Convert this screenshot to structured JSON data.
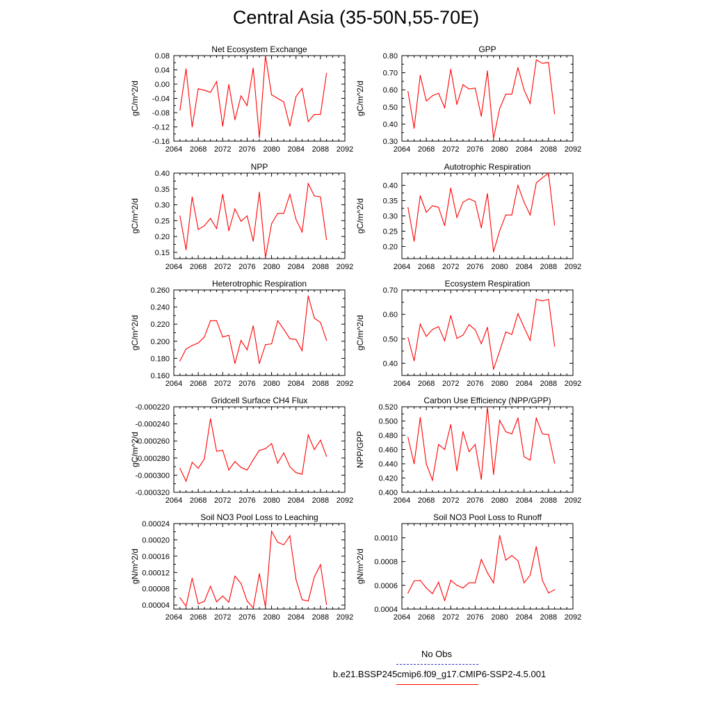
{
  "page": {
    "title": "Central Asia (35-50N,55-70E)"
  },
  "legend": {
    "obs_label": "No Obs",
    "model_label": "b.e21.BSSP245cmip6.f09_g17.CMIP6-SSP2-4.5.001",
    "obs_color": "#3333cc",
    "model_color": "#ff0000"
  },
  "chart_data": [
    {
      "type": "line",
      "title": "Net Ecosystem Exchange",
      "ylabel": "gC/m^2/d",
      "xlim": [
        2064,
        2092
      ],
      "ylim": [
        -0.16,
        0.08
      ],
      "x_ticks": [
        2064,
        2068,
        2072,
        2076,
        2080,
        2084,
        2088,
        2092
      ],
      "y_ticks": [
        -0.16,
        -0.12,
        -0.08,
        -0.04,
        0.0,
        0.04,
        0.08
      ],
      "y_tick_labels": [
        "-0.16",
        "-0.12",
        "-0.08",
        "-0.04",
        "0.00",
        "0.04",
        "0.08"
      ],
      "series": [
        {
          "x": [
            2065,
            2066,
            2067,
            2068,
            2069,
            2070,
            2071,
            2072,
            2073,
            2074,
            2075,
            2076,
            2077,
            2078,
            2079,
            2080,
            2081,
            2082,
            2083,
            2084,
            2085,
            2086,
            2087,
            2088,
            2089
          ],
          "values": [
            -0.073,
            0.043,
            -0.12,
            -0.013,
            -0.017,
            -0.023,
            0.007,
            -0.118,
            -0.001,
            -0.1,
            -0.033,
            -0.06,
            0.045,
            -0.15,
            0.08,
            -0.03,
            -0.04,
            -0.05,
            -0.118,
            -0.035,
            -0.012,
            -0.105,
            -0.085,
            -0.085,
            0.03
          ]
        }
      ]
    },
    {
      "type": "line",
      "title": "GPP",
      "ylabel": "gC/m^2/d",
      "xlim": [
        2064,
        2092
      ],
      "ylim": [
        0.3,
        0.8
      ],
      "x_ticks": [
        2064,
        2068,
        2072,
        2076,
        2080,
        2084,
        2088,
        2092
      ],
      "y_ticks": [
        0.3,
        0.4,
        0.5,
        0.6,
        0.7,
        0.8
      ],
      "y_tick_labels": [
        "0.30",
        "0.40",
        "0.50",
        "0.60",
        "0.70",
        "0.80"
      ],
      "series": [
        {
          "x": [
            2065,
            2066,
            2067,
            2068,
            2069,
            2070,
            2071,
            2072,
            2073,
            2074,
            2075,
            2076,
            2077,
            2078,
            2079,
            2080,
            2081,
            2082,
            2083,
            2084,
            2085,
            2086,
            2087,
            2088,
            2089
          ],
          "values": [
            0.59,
            0.375,
            0.685,
            0.535,
            0.565,
            0.58,
            0.495,
            0.72,
            0.515,
            0.63,
            0.605,
            0.61,
            0.445,
            0.71,
            0.315,
            0.49,
            0.575,
            0.575,
            0.73,
            0.6,
            0.52,
            0.775,
            0.755,
            0.76,
            0.46
          ]
        }
      ]
    },
    {
      "type": "line",
      "title": "NPP",
      "ylabel": "gC/m^2/d",
      "xlim": [
        2064,
        2092
      ],
      "ylim": [
        0.13,
        0.4
      ],
      "x_ticks": [
        2064,
        2068,
        2072,
        2076,
        2080,
        2084,
        2088,
        2092
      ],
      "y_ticks": [
        0.15,
        0.2,
        0.25,
        0.3,
        0.35,
        0.4
      ],
      "y_tick_labels": [
        "0.15",
        "0.20",
        "0.25",
        "0.30",
        "0.35",
        "0.40"
      ],
      "series": [
        {
          "x": [
            2065,
            2066,
            2067,
            2068,
            2069,
            2070,
            2071,
            2072,
            2073,
            2074,
            2075,
            2076,
            2077,
            2078,
            2079,
            2080,
            2081,
            2082,
            2083,
            2084,
            2085,
            2086,
            2087,
            2088,
            2089
          ],
          "values": [
            0.265,
            0.158,
            0.325,
            0.222,
            0.234,
            0.257,
            0.225,
            0.333,
            0.218,
            0.287,
            0.248,
            0.265,
            0.185,
            0.34,
            0.133,
            0.24,
            0.273,
            0.273,
            0.333,
            0.254,
            0.214,
            0.367,
            0.328,
            0.325,
            0.19
          ]
        }
      ]
    },
    {
      "type": "line",
      "title": "Autotrophic Respiration",
      "ylabel": "gC/m^2/d",
      "xlim": [
        2064,
        2092
      ],
      "ylim": [
        0.16,
        0.44
      ],
      "x_ticks": [
        2064,
        2068,
        2072,
        2076,
        2080,
        2084,
        2088,
        2092
      ],
      "y_ticks": [
        0.2,
        0.25,
        0.3,
        0.35,
        0.4
      ],
      "y_tick_labels": [
        "0.20",
        "0.25",
        "0.30",
        "0.35",
        "0.40"
      ],
      "series": [
        {
          "x": [
            2065,
            2066,
            2067,
            2068,
            2069,
            2070,
            2071,
            2072,
            2073,
            2074,
            2075,
            2076,
            2077,
            2078,
            2079,
            2080,
            2081,
            2082,
            2083,
            2084,
            2085,
            2086,
            2087,
            2088,
            2089
          ],
          "values": [
            0.327,
            0.217,
            0.366,
            0.312,
            0.333,
            0.328,
            0.268,
            0.391,
            0.295,
            0.345,
            0.356,
            0.347,
            0.261,
            0.373,
            0.182,
            0.251,
            0.303,
            0.303,
            0.4,
            0.345,
            0.303,
            0.408,
            0.425,
            0.44,
            0.27
          ]
        }
      ]
    },
    {
      "type": "line",
      "title": "Heterotrophic Respiration",
      "ylabel": "gC/m^2/d",
      "xlim": [
        2064,
        2092
      ],
      "ylim": [
        0.16,
        0.26
      ],
      "x_ticks": [
        2064,
        2068,
        2072,
        2076,
        2080,
        2084,
        2088,
        2092
      ],
      "y_ticks": [
        0.16,
        0.18,
        0.2,
        0.22,
        0.24,
        0.26
      ],
      "y_tick_labels": [
        "0.160",
        "0.180",
        "0.200",
        "0.220",
        "0.240",
        "0.260"
      ],
      "series": [
        {
          "x": [
            2065,
            2066,
            2067,
            2068,
            2069,
            2070,
            2071,
            2072,
            2073,
            2074,
            2075,
            2076,
            2077,
            2078,
            2079,
            2080,
            2081,
            2082,
            2083,
            2084,
            2085,
            2086,
            2087,
            2088,
            2089
          ],
          "values": [
            0.177,
            0.191,
            0.195,
            0.198,
            0.205,
            0.224,
            0.224,
            0.205,
            0.207,
            0.174,
            0.201,
            0.19,
            0.218,
            0.174,
            0.196,
            0.197,
            0.224,
            0.214,
            0.203,
            0.202,
            0.189,
            0.253,
            0.227,
            0.222,
            0.201
          ]
        }
      ]
    },
    {
      "type": "line",
      "title": "Ecosystem Respiration",
      "ylabel": "gC/m^2/d",
      "xlim": [
        2064,
        2092
      ],
      "ylim": [
        0.35,
        0.7
      ],
      "x_ticks": [
        2064,
        2068,
        2072,
        2076,
        2080,
        2084,
        2088,
        2092
      ],
      "y_ticks": [
        0.4,
        0.5,
        0.6,
        0.7
      ],
      "y_tick_labels": [
        "0.40",
        "0.50",
        "0.60",
        "0.70"
      ],
      "series": [
        {
          "x": [
            2065,
            2066,
            2067,
            2068,
            2069,
            2070,
            2071,
            2072,
            2073,
            2074,
            2075,
            2076,
            2077,
            2078,
            2079,
            2080,
            2081,
            2082,
            2083,
            2084,
            2085,
            2086,
            2087,
            2088,
            2089
          ],
          "values": [
            0.505,
            0.41,
            0.56,
            0.51,
            0.538,
            0.55,
            0.492,
            0.595,
            0.502,
            0.515,
            0.558,
            0.537,
            0.48,
            0.547,
            0.375,
            0.45,
            0.528,
            0.518,
            0.603,
            0.547,
            0.493,
            0.662,
            0.655,
            0.662,
            0.47
          ]
        }
      ]
    },
    {
      "type": "line",
      "title": "Gridcell Surface CH4 Flux",
      "ylabel": "gC/m^2/d",
      "xlim": [
        2064,
        2092
      ],
      "ylim": [
        -0.00032,
        -0.00022
      ],
      "x_ticks": [
        2064,
        2068,
        2072,
        2076,
        2080,
        2084,
        2088,
        2092
      ],
      "y_ticks": [
        -0.00032,
        -0.0003,
        -0.00028,
        -0.00026,
        -0.00024,
        -0.00022
      ],
      "y_tick_labels": [
        "-0.000320",
        "-0.000300",
        "-0.000280",
        "-0.000260",
        "-0.000240",
        "-0.000220"
      ],
      "series": [
        {
          "x": [
            2065,
            2066,
            2067,
            2068,
            2069,
            2070,
            2071,
            2072,
            2073,
            2074,
            2075,
            2076,
            2077,
            2078,
            2079,
            2080,
            2081,
            2082,
            2083,
            2084,
            2085,
            2086,
            2087,
            2088,
            2089
          ],
          "values": [
            -0.000292,
            -0.000307,
            -0.000285,
            -0.000292,
            -0.000281,
            -0.000234,
            -0.000272,
            -0.000271,
            -0.000294,
            -0.000284,
            -0.000291,
            -0.000294,
            -0.000282,
            -0.000271,
            -0.000269,
            -0.000263,
            -0.000286,
            -0.000274,
            -0.00029,
            -0.000297,
            -0.000299,
            -0.000253,
            -0.00027,
            -0.000259,
            -0.000278
          ]
        }
      ]
    },
    {
      "type": "line",
      "title": "Carbon Use Efficiency (NPP/GPP)",
      "ylabel": "NPP/GPP",
      "xlim": [
        2064,
        2092
      ],
      "ylim": [
        0.4,
        0.52
      ],
      "x_ticks": [
        2064,
        2068,
        2072,
        2076,
        2080,
        2084,
        2088,
        2092
      ],
      "y_ticks": [
        0.4,
        0.42,
        0.44,
        0.46,
        0.48,
        0.5,
        0.52
      ],
      "y_tick_labels": [
        "0.400",
        "0.420",
        "0.440",
        "0.460",
        "0.480",
        "0.500",
        "0.520"
      ],
      "series": [
        {
          "x": [
            2065,
            2066,
            2067,
            2068,
            2069,
            2070,
            2071,
            2072,
            2073,
            2074,
            2075,
            2076,
            2077,
            2078,
            2079,
            2080,
            2081,
            2082,
            2083,
            2084,
            2085,
            2086,
            2087,
            2088,
            2089
          ],
          "values": [
            0.477,
            0.44,
            0.505,
            0.44,
            0.417,
            0.467,
            0.46,
            0.495,
            0.43,
            0.485,
            0.457,
            0.467,
            0.418,
            0.52,
            0.425,
            0.501,
            0.485,
            0.482,
            0.504,
            0.45,
            0.445,
            0.504,
            0.482,
            0.481,
            0.441
          ]
        }
      ]
    },
    {
      "type": "line",
      "title": "Soil NO3 Pool Loss to Leaching",
      "ylabel": "gN/m^2/d",
      "xlim": [
        2064,
        2092
      ],
      "ylim": [
        3e-05,
        0.00024
      ],
      "x_ticks": [
        2064,
        2068,
        2072,
        2076,
        2080,
        2084,
        2088,
        2092
      ],
      "y_ticks": [
        4e-05,
        8e-05,
        0.00012,
        0.00016,
        0.0002,
        0.00024
      ],
      "y_tick_labels": [
        "0.00004",
        "0.00008",
        "0.00012",
        "0.00016",
        "0.00020",
        "0.00024"
      ],
      "series": [
        {
          "x": [
            2065,
            2066,
            2067,
            2068,
            2069,
            2070,
            2071,
            2072,
            2073,
            2074,
            2075,
            2076,
            2077,
            2078,
            2079,
            2080,
            2081,
            2082,
            2083,
            2084,
            2085,
            2086,
            2087,
            2088,
            2089
          ],
          "values": [
            5.8e-05,
            3.7e-05,
            0.000106,
            4.3e-05,
            4.9e-05,
            8.6e-05,
            4.8e-05,
            6.2e-05,
            4.7e-05,
            0.000111,
            9.3e-05,
            5e-05,
            3.3e-05,
            0.000117,
            3.5e-05,
            0.000221,
            0.000194,
            0.000188,
            0.00021,
            0.000103,
            5.3e-05,
            5e-05,
            0.000109,
            0.000139,
            4.1e-05
          ]
        }
      ]
    },
    {
      "type": "line",
      "title": "Soil NO3 Pool Loss to Runoff",
      "ylabel": "gN/m^2/d",
      "xlim": [
        2064,
        2092
      ],
      "ylim": [
        0.0004,
        0.00112
      ],
      "x_ticks": [
        2064,
        2068,
        2072,
        2076,
        2080,
        2084,
        2088,
        2092
      ],
      "y_ticks": [
        0.0004,
        0.0006,
        0.0008,
        0.001
      ],
      "y_tick_labels": [
        "0.0004",
        "0.0006",
        "0.0008",
        "0.0010"
      ],
      "series": [
        {
          "x": [
            2065,
            2066,
            2067,
            2068,
            2069,
            2070,
            2071,
            2072,
            2073,
            2074,
            2075,
            2076,
            2077,
            2078,
            2079,
            2080,
            2081,
            2082,
            2083,
            2084,
            2085,
            2086,
            2087,
            2088,
            2089
          ],
          "values": [
            0.000535,
            0.000637,
            0.000642,
            0.000578,
            0.00053,
            0.000626,
            0.000472,
            0.000642,
            0.0006,
            0.000578,
            0.000621,
            0.000621,
            0.000818,
            0.000706,
            0.000621,
            0.00102,
            0.000812,
            0.000851,
            0.000807,
            0.000621,
            0.000685,
            0.000925,
            0.000642,
            0.000536,
            0.000563
          ]
        }
      ]
    }
  ]
}
